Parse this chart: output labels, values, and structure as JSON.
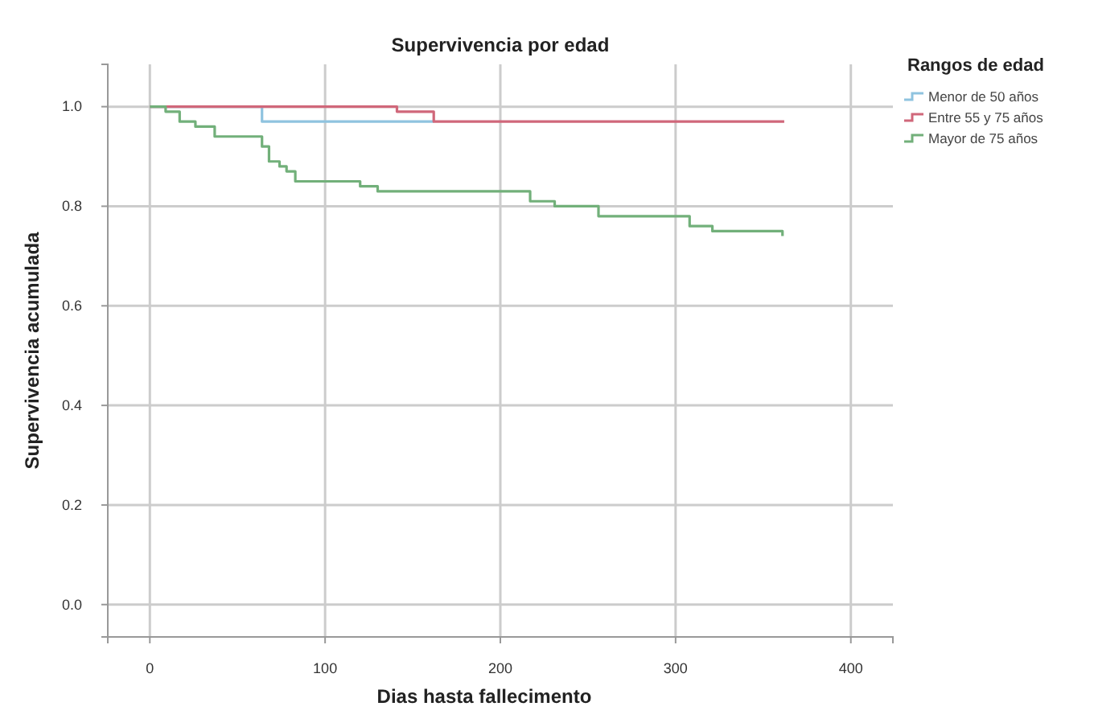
{
  "chart_data": {
    "type": "step",
    "title": "Supervivencia por edad",
    "xlabel": "Dias hasta fallecimento",
    "ylabel": "Supervivencia acumulada",
    "legend_title": "Rangos de edad",
    "legend": "right",
    "grid": true,
    "marker": "none",
    "line_style": "solid",
    "xlim": [
      -24,
      424
    ],
    "xticks": [
      0,
      100,
      200,
      300,
      400
    ],
    "ylim": [
      -0.065,
      1.085
    ],
    "yticks": [
      {
        "value": 0,
        "label": "0.0"
      },
      {
        "value": 0.2,
        "label": "0.2"
      },
      {
        "value": 0.4,
        "label": "0.4"
      },
      {
        "value": 0.6,
        "label": "0.6"
      },
      {
        "value": 0.8,
        "label": "0.8"
      },
      {
        "value": 1,
        "label": "1.0"
      }
    ],
    "series": [
      {
        "name": "Menor de 50 años",
        "color": "#8fc3df",
        "x": [
          0,
          64,
          162
        ],
        "values": [
          1,
          0.97,
          0.97
        ]
      },
      {
        "name": "Entre 55 y 75 años",
        "color": "#d0677a",
        "x": [
          0,
          141,
          162,
          362
        ],
        "values": [
          1,
          0.99,
          0.97,
          0.97
        ]
      },
      {
        "name": "Mayor de 75 años",
        "color": "#72b07a",
        "x": [
          0,
          9,
          17,
          26,
          37,
          64,
          68,
          74,
          78,
          83,
          120,
          130,
          217,
          231,
          256,
          308,
          321,
          361
        ],
        "values": [
          1,
          0.99,
          0.97,
          0.96,
          0.94,
          0.92,
          0.89,
          0.88,
          0.87,
          0.85,
          0.84,
          0.83,
          0.81,
          0.8,
          0.78,
          0.76,
          0.75,
          0.74
        ]
      }
    ]
  }
}
